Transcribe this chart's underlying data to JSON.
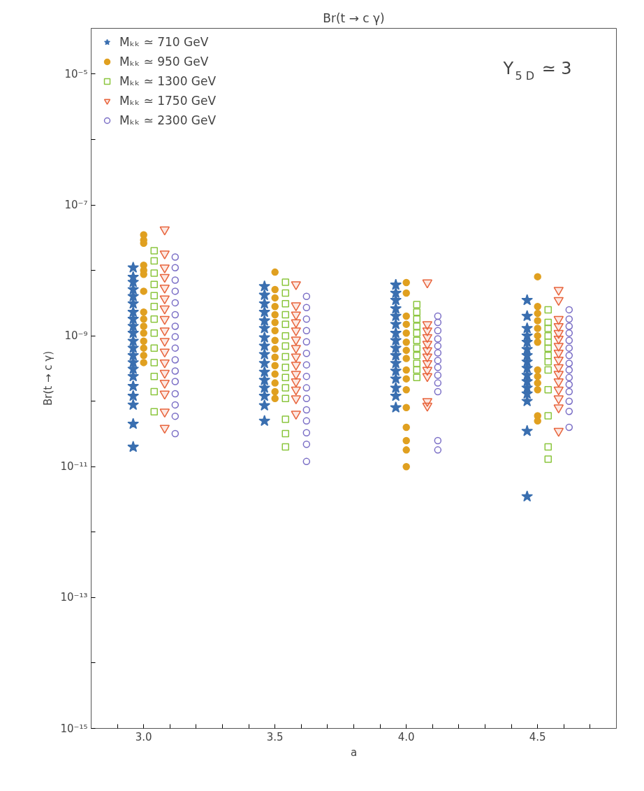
{
  "chart_data": {
    "type": "scatter",
    "title": "Br(t → c γ)",
    "xlabel": "a",
    "ylabel": "Br(t → c γ)",
    "annotations": [
      "Y$_{5 D}$ ≃ 3"
    ],
    "log": "y",
    "grid": false,
    "legend": "top left",
    "xlim": [
      2.8,
      4.8
    ],
    "xticks": [
      {
        "value": 2.9,
        "label": null
      },
      {
        "value": 3.0,
        "label": "3.0"
      },
      {
        "value": 3.1,
        "label": null
      },
      {
        "value": 3.2,
        "label": null
      },
      {
        "value": 3.3,
        "label": null
      },
      {
        "value": 3.4,
        "label": null
      },
      3.5,
      {
        "value": 3.6,
        "label": null
      },
      {
        "value": 3.7,
        "label": null
      },
      {
        "value": 3.8,
        "label": null
      },
      {
        "value": 3.9,
        "label": null
      },
      {
        "value": 4.0,
        "label": "4.0"
      },
      {
        "value": 4.1,
        "label": null
      },
      {
        "value": 4.2,
        "label": null
      },
      {
        "value": 4.3,
        "label": null
      },
      {
        "value": 4.4,
        "label": null
      },
      4.5,
      {
        "value": 4.6,
        "label": null
      },
      {
        "value": 4.7,
        "label": null
      }
    ],
    "ylim": [
      1e-15,
      5e-05
    ],
    "yticks": [
      {
        "value": 1e-15,
        "label": "10⁻¹⁵"
      },
      {
        "value": 1e-14,
        "label": null
      },
      {
        "value": 1e-13,
        "label": "10⁻¹³"
      },
      {
        "value": 1e-12,
        "label": null
      },
      {
        "value": 1e-11,
        "label": "10⁻¹¹"
      },
      {
        "value": 1e-10,
        "label": null
      },
      {
        "value": 1e-09,
        "label": "10⁻⁹"
      },
      {
        "value": 1e-08,
        "label": null
      },
      {
        "value": 1e-07,
        "label": "10⁻⁷"
      },
      {
        "value": 1e-06,
        "label": null
      },
      {
        "value": 1e-05,
        "label": "10⁻⁵"
      }
    ],
    "series": [
      {
        "name": "Mₖₖ ≃ 710 GeV",
        "color": "#3a6fb0",
        "marker": "star",
        "x": [
          2.96,
          2.96,
          2.96,
          2.96,
          2.96,
          2.96,
          2.96,
          2.96,
          2.96,
          2.96,
          2.96,
          2.96,
          2.96,
          2.96,
          2.96,
          2.96,
          2.96,
          2.96,
          2.96,
          2.96,
          2.96,
          3.46,
          3.46,
          3.46,
          3.46,
          3.46,
          3.46,
          3.46,
          3.46,
          3.46,
          3.46,
          3.46,
          3.46,
          3.46,
          3.46,
          3.46,
          3.46,
          3.96,
          3.96,
          3.96,
          3.96,
          3.96,
          3.96,
          3.96,
          3.96,
          3.96,
          3.96,
          3.96,
          3.96,
          3.96,
          3.96,
          3.96,
          3.96,
          4.46,
          4.46,
          4.46,
          4.46,
          4.46,
          4.46,
          4.46,
          4.46,
          4.46,
          4.46,
          4.46,
          4.46,
          4.46,
          4.46,
          4.46,
          4.46
        ],
        "values": [
          1.1e-08,
          7.9e-09,
          6.6e-09,
          5.1e-09,
          4e-09,
          3.1e-09,
          2.3e-09,
          1.8e-09,
          1.4e-09,
          1.1e-09,
          8.3e-10,
          6.5e-10,
          5e-10,
          3.9e-10,
          3.1e-10,
          2.4e-10,
          1.7e-10,
          1.2e-10,
          8.8e-11,
          4.5e-11,
          2e-11,
          5.7e-09,
          4.2e-09,
          3.1e-09,
          2.3e-09,
          1.7e-09,
          1.3e-09,
          9.4e-10,
          7e-10,
          5.2e-10,
          3.8e-10,
          2.8e-10,
          2.1e-10,
          1.6e-10,
          1.2e-10,
          8.6e-11,
          5e-11,
          6e-09,
          4.5e-09,
          3.5e-09,
          2.6e-09,
          2e-09,
          1.5e-09,
          1.1e-09,
          8.5e-10,
          6.5e-10,
          5e-10,
          3.8e-10,
          2.9e-10,
          2.2e-10,
          1.6e-10,
          1.2e-10,
          8e-11,
          3.5e-09,
          2e-09,
          1.3e-09,
          1e-09,
          8e-10,
          6.2e-10,
          5e-10,
          4e-10,
          3.2e-10,
          2.5e-10,
          2e-10,
          1.6e-10,
          1.3e-10,
          1e-10,
          3.5e-11,
          3.5e-12
        ]
      },
      {
        "name": "Mₖₖ ≃ 950 GeV",
        "color": "#e0a020",
        "marker": "circle",
        "x": [
          3.0,
          3.0,
          3.0,
          3.0,
          3.0,
          3.0,
          3.0,
          3.0,
          3.0,
          3.0,
          3.0,
          3.0,
          3.0,
          3.0,
          3.0,
          3.5,
          3.5,
          3.5,
          3.5,
          3.5,
          3.5,
          3.5,
          3.5,
          3.5,
          3.5,
          3.5,
          3.5,
          3.5,
          3.5,
          3.5,
          4.0,
          4.0,
          4.0,
          4.0,
          4.0,
          4.0,
          4.0,
          4.0,
          4.0,
          4.0,
          4.0,
          4.0,
          4.0,
          4.0,
          4.0,
          4.0,
          4.5,
          4.5,
          4.5,
          4.5,
          4.5,
          4.5,
          4.5,
          4.5,
          4.5,
          4.5,
          4.5,
          4.5,
          4.5
        ],
        "values": [
          3.5e-08,
          2.9e-08,
          2.6e-08,
          1.2e-08,
          1e-08,
          8.7e-09,
          4.8e-09,
          2.3e-09,
          1.8e-09,
          1.4e-09,
          1.1e-09,
          8.3e-10,
          6.5e-10,
          5e-10,
          3.9e-10,
          9.4e-09,
          5.1e-09,
          3.8e-09,
          2.8e-09,
          2.1e-09,
          1.6e-09,
          1.2e-09,
          8.5e-10,
          6.3e-10,
          4.7e-10,
          3.5e-10,
          2.6e-10,
          1.9e-10,
          1.4e-10,
          1.1e-10,
          6.5e-09,
          4.5e-09,
          2e-09,
          1.5e-09,
          1.1e-09,
          8e-10,
          6e-10,
          4.5e-10,
          3e-10,
          2.2e-10,
          1.5e-10,
          8e-11,
          4e-11,
          2.5e-11,
          1.8e-11,
          1e-11,
          8e-09,
          2.8e-09,
          2.2e-09,
          1.7e-09,
          1.3e-09,
          1e-09,
          8e-10,
          3e-10,
          2.4e-10,
          1.9e-10,
          1.5e-10,
          6e-11,
          5e-11
        ]
      },
      {
        "name": "Mₖₖ ≃ 1300 GeV",
        "color": "#8cc63f",
        "marker": "square",
        "x": [
          3.04,
          3.04,
          3.04,
          3.04,
          3.04,
          3.04,
          3.04,
          3.04,
          3.04,
          3.04,
          3.04,
          3.04,
          3.04,
          3.54,
          3.54,
          3.54,
          3.54,
          3.54,
          3.54,
          3.54,
          3.54,
          3.54,
          3.54,
          3.54,
          3.54,
          3.54,
          3.54,
          3.54,
          4.04,
          4.04,
          4.04,
          4.04,
          4.04,
          4.04,
          4.04,
          4.04,
          4.04,
          4.04,
          4.04,
          4.54,
          4.54,
          4.54,
          4.54,
          4.54,
          4.54,
          4.54,
          4.54,
          4.54,
          4.54,
          4.54,
          4.54,
          4.54
        ],
        "values": [
          2e-08,
          1.4e-08,
          9.1e-09,
          6.1e-09,
          4.1e-09,
          2.8e-09,
          1.8e-09,
          1.1e-09,
          6.5e-10,
          3.9e-10,
          2.4e-10,
          1.4e-10,
          6.9e-11,
          6.6e-09,
          4.5e-09,
          3.1e-09,
          2.1e-09,
          1.5e-09,
          1e-09,
          7e-10,
          4.8e-10,
          3.3e-10,
          2.3e-10,
          1.6e-10,
          1.1e-10,
          5.3e-11,
          3.2e-11,
          2e-11,
          3e-09,
          2.3e-09,
          1.8e-09,
          1.4e-09,
          1.1e-09,
          8.5e-10,
          6.5e-10,
          5e-10,
          3.8e-10,
          3e-10,
          2.3e-10,
          2.5e-09,
          1.6e-09,
          1.3e-09,
          1e-09,
          8e-10,
          6.5e-10,
          5e-10,
          4e-10,
          3e-10,
          1.5e-10,
          6e-11,
          2e-11,
          1.3e-11
        ]
      },
      {
        "name": "Mₖₖ ≃ 1750 GeV",
        "color": "#e8643c",
        "marker": "triangle",
        "x": [
          3.08,
          3.08,
          3.08,
          3.08,
          3.08,
          3.08,
          3.08,
          3.08,
          3.08,
          3.08,
          3.08,
          3.08,
          3.08,
          3.08,
          3.08,
          3.08,
          3.08,
          3.58,
          3.58,
          3.58,
          3.58,
          3.58,
          3.58,
          3.58,
          3.58,
          3.58,
          3.58,
          3.58,
          3.58,
          3.58,
          3.58,
          4.08,
          4.08,
          4.08,
          4.08,
          4.08,
          4.08,
          4.08,
          4.08,
          4.08,
          4.08,
          4.08,
          4.08,
          4.58,
          4.58,
          4.58,
          4.58,
          4.58,
          4.58,
          4.58,
          4.58,
          4.58,
          4.58,
          4.58,
          4.58,
          4.58,
          4.58,
          4.58,
          4.58
        ],
        "values": [
          4.2e-08,
          1.8e-08,
          1.1e-08,
          7.9e-09,
          5.4e-09,
          3.7e-09,
          2.6e-09,
          1.8e-09,
          1.2e-09,
          8.3e-10,
          5.7e-10,
          3.9e-10,
          2.7e-10,
          1.9e-10,
          1.3e-10,
          6.9e-11,
          3.9e-11,
          6.1e-09,
          2.9e-09,
          2.1e-09,
          1.6e-09,
          1.2e-09,
          8.7e-10,
          6.5e-10,
          4.8e-10,
          3.6e-10,
          2.6e-10,
          2e-10,
          1.5e-10,
          1.1e-10,
          6.4e-11,
          6.5e-09,
          1.5e-09,
          1.2e-09,
          9.5e-10,
          7.5e-10,
          6e-10,
          4.8e-10,
          3.8e-10,
          3e-10,
          2.4e-10,
          1e-10,
          8.5e-11,
          5e-09,
          3.5e-09,
          1.8e-09,
          1.4e-09,
          1.1e-09,
          9e-10,
          7e-10,
          5.5e-10,
          4.3e-10,
          3.3e-10,
          2.6e-10,
          2e-10,
          1.5e-10,
          1.1e-10,
          8e-11,
          3.5e-11
        ]
      },
      {
        "name": "Mₖₖ ≃ 2300 GeV",
        "color": "#7b6fc6",
        "marker": "circle",
        "x": [
          3.12,
          3.12,
          3.12,
          3.12,
          3.12,
          3.12,
          3.12,
          3.12,
          3.12,
          3.12,
          3.12,
          3.12,
          3.12,
          3.12,
          3.12,
          3.12,
          3.62,
          3.62,
          3.62,
          3.62,
          3.62,
          3.62,
          3.62,
          3.62,
          3.62,
          3.62,
          3.62,
          3.62,
          3.62,
          3.62,
          3.62,
          4.12,
          4.12,
          4.12,
          4.12,
          4.12,
          4.12,
          4.12,
          4.12,
          4.12,
          4.12,
          4.12,
          4.12,
          4.12,
          4.62,
          4.62,
          4.62,
          4.62,
          4.62,
          4.62,
          4.62,
          4.62,
          4.62,
          4.62,
          4.62,
          4.62,
          4.62,
          4.62,
          4.62
        ],
        "values": [
          1.6e-08,
          1.1e-08,
          7.1e-09,
          4.8e-09,
          3.2e-09,
          2.1e-09,
          1.4e-09,
          9.7e-10,
          6.5e-10,
          4.3e-10,
          2.9e-10,
          2e-10,
          1.3e-10,
          8.8e-11,
          5.9e-11,
          3.2e-11,
          4e-09,
          2.7e-09,
          1.8e-09,
          1.2e-09,
          8.1e-10,
          5.4e-10,
          3.6e-10,
          2.4e-10,
          1.6e-10,
          1.1e-10,
          7.4e-11,
          5e-11,
          3.3e-11,
          2.2e-11,
          1.2e-11,
          2e-09,
          1.6e-09,
          1.2e-09,
          9e-10,
          7e-10,
          5.5e-10,
          4.2e-10,
          3.3e-10,
          2.5e-10,
          1.9e-10,
          1.4e-10,
          2.5e-11,
          1.8e-11,
          2.5e-09,
          1.8e-09,
          1.4e-09,
          1.1e-09,
          8.5e-10,
          6.5e-10,
          5e-10,
          3.8e-10,
          3e-10,
          2.3e-10,
          1.8e-10,
          1.4e-10,
          1e-10,
          7e-11,
          4e-11
        ]
      }
    ]
  }
}
